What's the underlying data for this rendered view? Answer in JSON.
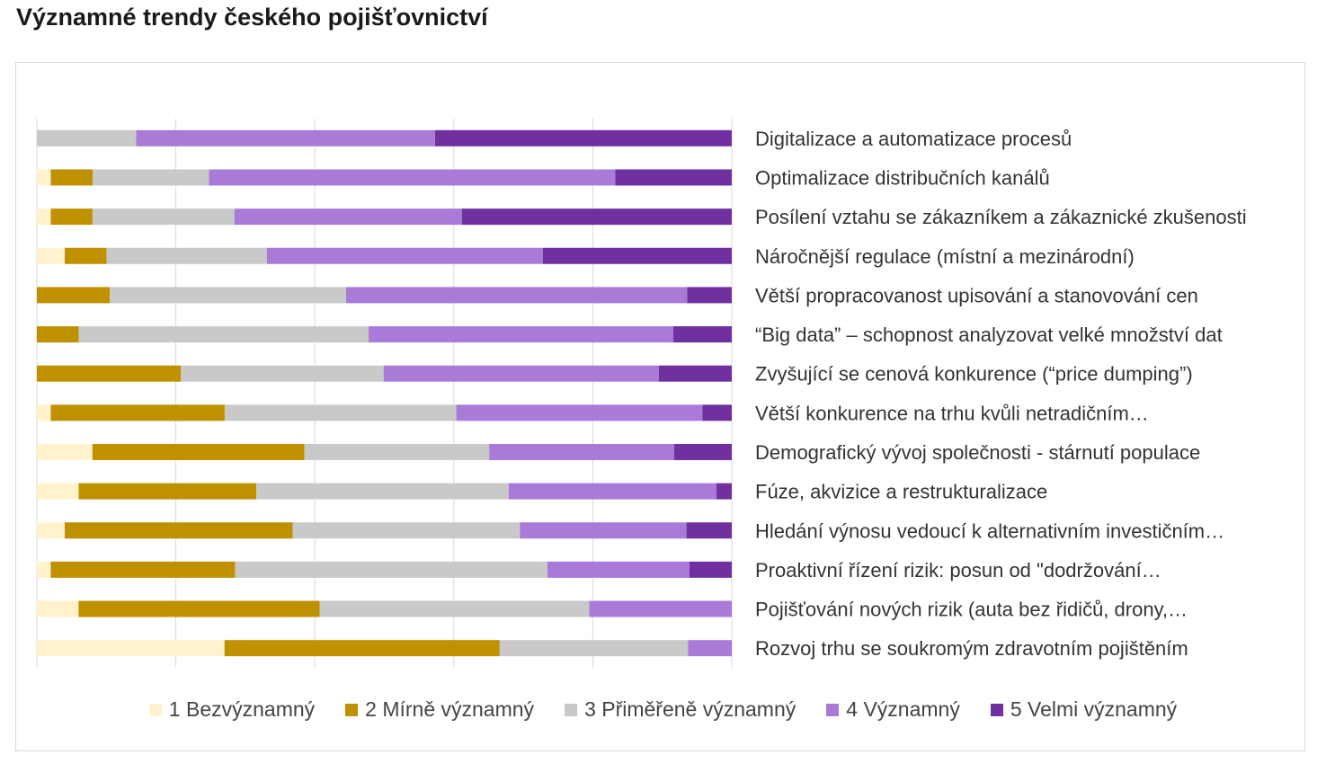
{
  "chart_data": {
    "type": "bar",
    "orientation": "horizontal",
    "stacked": "percent",
    "title": "Významné trendy českého pojišťovnictví",
    "grid": true,
    "legend_position": "bottom",
    "categories": [
      "Digitalizace a automatizace procesů",
      "Optimalizace distribučních kanálů",
      "Posílení vztahu se zákazníkem a zákaznické zkušenosti",
      "Náročnější regulace (místní a mezinárodní)",
      "Větší propracovanost upisování a stanovování cen",
      "“Big data” – schopnost analyzovat velké množství dat",
      "Zvyšující se cenová konkurence (“price dumping”)",
      "Větší konkurence na trhu kvůli netradičním…",
      "Demografický vývoj společnosti - stárnutí populace",
      "Fúze, akvizice a restrukturalizace",
      "Hledání výnosu vedoucí k alternativním investičním…",
      "Proaktivní řízení rizik: posun od \"dodržování…",
      "Pojišťování nových rizik (auta bez řidičů, drony,…",
      "Rozvoj trhu se soukromým zdravotním pojištěním"
    ],
    "series": [
      {
        "name": "1 Bezvýznamný",
        "color": "#fff2cc",
        "values": [
          0,
          2,
          2,
          4,
          0,
          0,
          0,
          2,
          8,
          6,
          4,
          2,
          6,
          27
        ]
      },
      {
        "name": "2 Mírně významný",
        "color": "#bf9000",
        "values": [
          0,
          6,
          6,
          6,
          10.5,
          6,
          20.7,
          25,
          30.5,
          25.5,
          32.7,
          26.5,
          34.7,
          39.6
        ]
      },
      {
        "name": "3 Přiměřeně významný",
        "color": "#c9c9c9",
        "values": [
          14.3,
          16.7,
          20.4,
          23,
          34,
          41.6,
          29.2,
          33.3,
          26.6,
          36.2,
          32.6,
          44.9,
          38.8,
          27.1
        ]
      },
      {
        "name": "4 Významný",
        "color": "#a97ad8",
        "values": [
          43,
          58.3,
          32.7,
          39.6,
          49.1,
          43.7,
          39.6,
          35.4,
          26.6,
          29.8,
          23.9,
          20.4,
          20.5,
          6.3
        ]
      },
      {
        "name": "5 Velmi významný",
        "color": "#7030a0",
        "values": [
          42.7,
          16.7,
          38.8,
          27.1,
          6.4,
          8.4,
          10.5,
          4.2,
          8.3,
          2.2,
          6.5,
          6.1,
          0,
          0
        ]
      }
    ],
    "xlim": [
      0,
      100
    ]
  }
}
